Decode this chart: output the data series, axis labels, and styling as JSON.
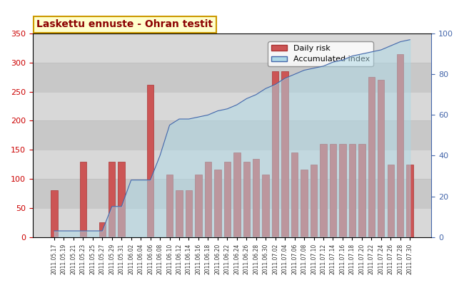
{
  "title": "Laskettu ennuste - Ohran testit",
  "dates": [
    "2011.05.17",
    "2011.05.19",
    "2011.05.21",
    "2011.05.23",
    "2011.05.25",
    "2011.05.27",
    "2011.05.29",
    "2011.05.31",
    "2011.06.02",
    "2011.06.04",
    "2011.06.06",
    "2011.06.08",
    "2011.06.10",
    "2011.06.12",
    "2011.06.14",
    "2011.06.16",
    "2011.06.18",
    "2011.06.20",
    "2011.06.22",
    "2011.06.24",
    "2011.06.26",
    "2011.06.28",
    "2011.06.30",
    "2011.07.02",
    "2011.07.04",
    "2011.07.06",
    "2011.07.08",
    "2011.07.10",
    "2011.07.12",
    "2011.07.14",
    "2011.07.16",
    "2011.07.18",
    "2011.07.20",
    "2011.07.22",
    "2011.07.24",
    "2011.07.26",
    "2011.07.28",
    "2011.07.30"
  ],
  "bar_values": [
    80,
    0,
    0,
    130,
    0,
    25,
    130,
    130,
    0,
    0,
    262,
    0,
    107,
    80,
    80,
    107,
    130,
    116,
    130,
    145,
    130,
    135,
    107,
    285,
    285,
    145,
    116,
    125,
    160,
    160,
    160,
    160,
    160,
    275,
    270,
    125,
    315,
    125
  ],
  "accumulated_index": [
    3,
    3,
    3,
    3,
    3,
    3,
    15,
    15,
    28,
    28,
    28,
    40,
    55,
    58,
    58,
    59,
    60,
    62,
    63,
    65,
    68,
    70,
    73,
    75,
    78,
    80,
    82,
    83,
    84,
    86,
    87,
    89,
    90,
    91,
    92,
    94,
    96,
    97
  ],
  "bar_color": "#cc5555",
  "bar_edge_color": "#aa3333",
  "area_color": "#add8e6",
  "area_line_color": "#4466aa",
  "bg_gray_color": "#d8d8d8",
  "ylim_left": [
    0,
    350
  ],
  "ylim_right": [
    0,
    100
  ],
  "title_color": "#8b0000",
  "title_bg": "#ffffcc",
  "title_border": "#cc9900",
  "axis_color": "#cc0000",
  "legend_labels": [
    "Daily risk",
    "Accumulated index"
  ]
}
